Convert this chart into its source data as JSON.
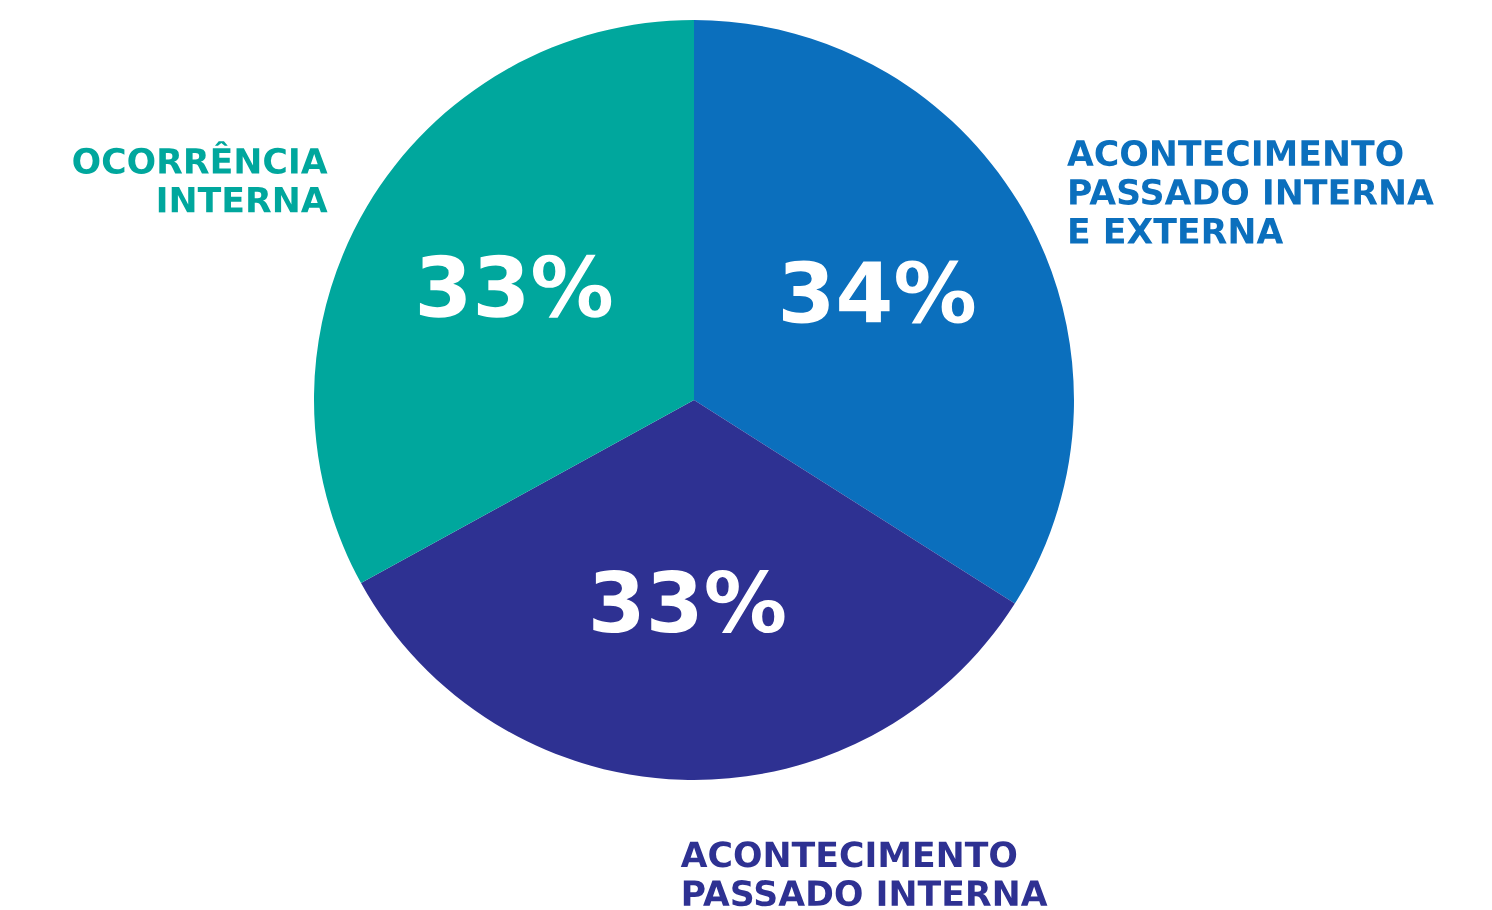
{
  "chart_data": {
    "type": "pie",
    "categories": [
      "ACONTECIMENTO\nPASSADO INTERNA\nE EXTERNA",
      "ACONTECIMENTO\nPASSADO INTERNA",
      "OCORRÊNCIA\nINTERNA"
    ],
    "values": [
      34,
      33,
      33
    ],
    "colors": [
      "#0b6fbd",
      "#2e3192",
      "#00a79d"
    ],
    "value_labels": [
      "34%",
      "33%",
      "33%"
    ]
  }
}
